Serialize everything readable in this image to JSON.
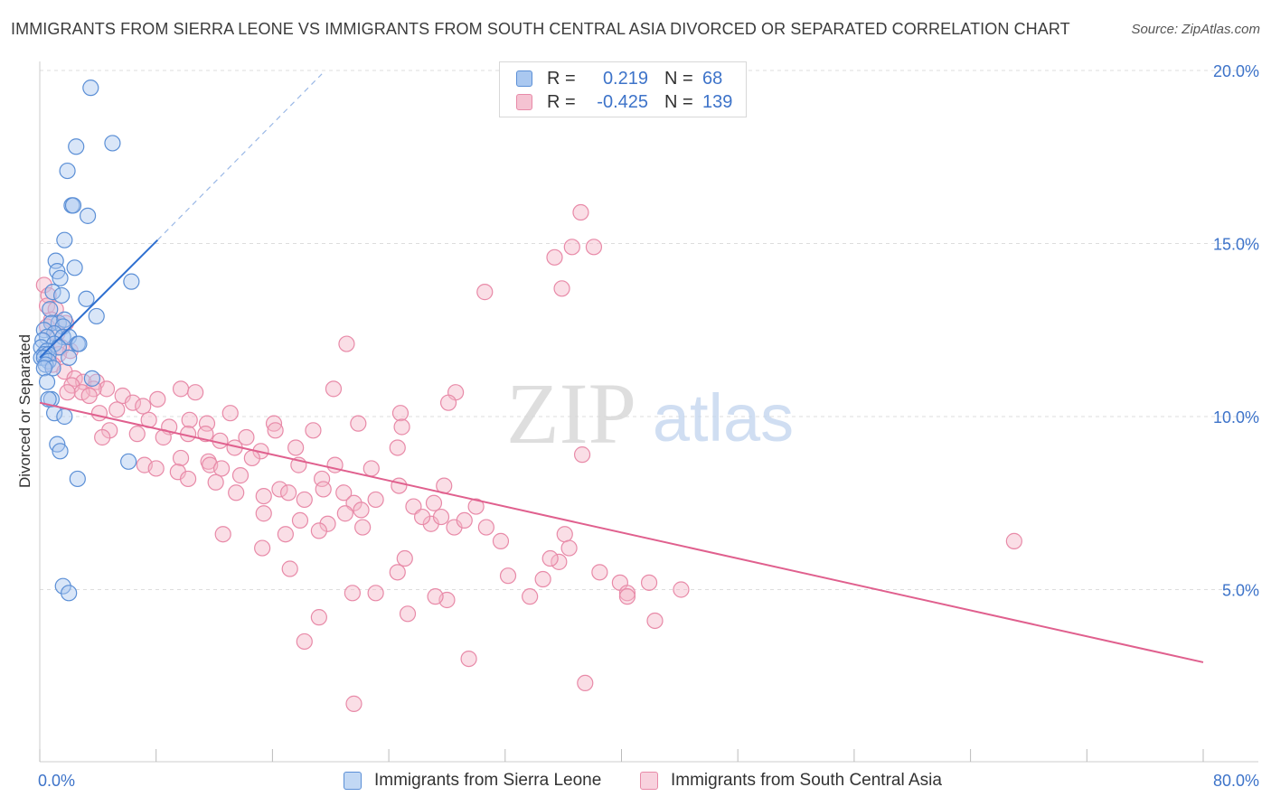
{
  "header": {
    "title": "IMMIGRANTS FROM SIERRA LEONE VS IMMIGRANTS FROM SOUTH CENTRAL ASIA DIVORCED OR SEPARATED CORRELATION CHART",
    "source": "Source: ZipAtlas.com"
  },
  "colors": {
    "blue_fill": "#aac8f0",
    "blue_stroke": "#5b8fd6",
    "blue_line": "#2e6fd0",
    "pink_fill": "#f5b6c8",
    "pink_stroke": "#e88aa8",
    "pink_line": "#e0608e",
    "axis_text": "#3d73c9",
    "grid": "#dddddd"
  },
  "legend": {
    "series1": {
      "r_label": "R =",
      "r_value": "0.219",
      "n_label": "N =",
      "n_value": "68"
    },
    "series2": {
      "r_label": "R =",
      "r_value": "-0.425",
      "n_label": "N =",
      "n_value": "139"
    }
  },
  "watermark": {
    "zip": "ZIP",
    "atlas": "atlas"
  },
  "chart_data": {
    "type": "scatter",
    "title": "IMMIGRANTS FROM SIERRA LEONE VS IMMIGRANTS FROM SOUTH CENTRAL ASIA DIVORCED OR SEPARATED CORRELATION CHART",
    "xlabel": "",
    "ylabel": "Divorced or Separated",
    "xlim": [
      0,
      80
    ],
    "ylim": [
      0,
      21
    ],
    "x_tick_labels": [
      "0.0%",
      "80.0%"
    ],
    "y_ticks": [
      5,
      10,
      15,
      20
    ],
    "y_tick_labels": [
      "5.0%",
      "10.0%",
      "15.0%",
      "20.0%"
    ],
    "grid": true,
    "series": [
      {
        "name": "Immigrants from Sierra Leone",
        "color": "#5b8fd6",
        "trend": {
          "x0": 0,
          "y0": 11.7,
          "x1": 8.1,
          "y1": 15.1,
          "dash_to_x": 19.4,
          "dash_to_y": 19.9
        },
        "points": [
          [
            3.5,
            19.5
          ],
          [
            2.5,
            17.8
          ],
          [
            5.0,
            17.9
          ],
          [
            1.9,
            17.1
          ],
          [
            2.2,
            16.1
          ],
          [
            2.3,
            16.1
          ],
          [
            3.3,
            15.8
          ],
          [
            1.7,
            15.1
          ],
          [
            1.1,
            14.5
          ],
          [
            2.4,
            14.3
          ],
          [
            1.2,
            14.2
          ],
          [
            1.4,
            14.0
          ],
          [
            6.3,
            13.9
          ],
          [
            0.9,
            13.6
          ],
          [
            1.5,
            13.5
          ],
          [
            3.2,
            13.4
          ],
          [
            0.7,
            13.1
          ],
          [
            3.9,
            12.9
          ],
          [
            1.3,
            12.7
          ],
          [
            0.8,
            12.7
          ],
          [
            1.7,
            12.8
          ],
          [
            1.6,
            12.6
          ],
          [
            0.3,
            12.5
          ],
          [
            1.0,
            12.4
          ],
          [
            1.6,
            12.3
          ],
          [
            0.5,
            12.3
          ],
          [
            2.0,
            12.3
          ],
          [
            0.2,
            12.2
          ],
          [
            1.0,
            12.1
          ],
          [
            2.6,
            12.1
          ],
          [
            2.7,
            12.1
          ],
          [
            1.3,
            12.0
          ],
          [
            0.1,
            12.0
          ],
          [
            0.5,
            11.9
          ],
          [
            0.3,
            11.8
          ],
          [
            0.6,
            11.8
          ],
          [
            0.1,
            11.7
          ],
          [
            0.3,
            11.7
          ],
          [
            0.6,
            11.6
          ],
          [
            2.0,
            11.7
          ],
          [
            0.4,
            11.5
          ],
          [
            0.9,
            11.4
          ],
          [
            0.3,
            11.4
          ],
          [
            3.6,
            11.1
          ],
          [
            0.5,
            11.0
          ],
          [
            0.8,
            10.5
          ],
          [
            0.6,
            10.5
          ],
          [
            1.0,
            10.1
          ],
          [
            1.7,
            10.0
          ],
          [
            1.2,
            9.2
          ],
          [
            1.4,
            9.0
          ],
          [
            6.1,
            8.7
          ],
          [
            2.6,
            8.2
          ],
          [
            1.6,
            5.1
          ],
          [
            2.0,
            4.9
          ]
        ]
      },
      {
        "name": "Immigrants from South Central Asia",
        "color": "#e88aa8",
        "trend": {
          "x0": 0,
          "y0": 10.4,
          "x1": 80,
          "y1": 2.9
        },
        "points": [
          [
            0.3,
            13.8
          ],
          [
            0.6,
            13.5
          ],
          [
            0.5,
            13.2
          ],
          [
            1.1,
            13.1
          ],
          [
            0.8,
            12.8
          ],
          [
            1.8,
            12.7
          ],
          [
            0.5,
            12.6
          ],
          [
            1.2,
            12.4
          ],
          [
            1.5,
            12.0
          ],
          [
            2.1,
            11.9
          ],
          [
            1.3,
            11.8
          ],
          [
            0.9,
            11.5
          ],
          [
            1.7,
            11.3
          ],
          [
            2.4,
            11.1
          ],
          [
            3.0,
            11.0
          ],
          [
            2.2,
            10.9
          ],
          [
            3.9,
            11.0
          ],
          [
            4.6,
            10.8
          ],
          [
            3.7,
            10.8
          ],
          [
            5.7,
            10.6
          ],
          [
            2.9,
            10.7
          ],
          [
            3.4,
            10.6
          ],
          [
            1.9,
            10.7
          ],
          [
            6.4,
            10.4
          ],
          [
            7.1,
            10.3
          ],
          [
            5.3,
            10.2
          ],
          [
            4.1,
            10.1
          ],
          [
            8.1,
            10.5
          ],
          [
            9.7,
            10.8
          ],
          [
            10.7,
            10.7
          ],
          [
            13.1,
            10.1
          ],
          [
            7.5,
            9.9
          ],
          [
            8.9,
            9.7
          ],
          [
            10.3,
            9.9
          ],
          [
            11.5,
            9.8
          ],
          [
            4.8,
            9.6
          ],
          [
            6.7,
            9.5
          ],
          [
            8.5,
            9.4
          ],
          [
            4.3,
            9.4
          ],
          [
            10.2,
            9.5
          ],
          [
            11.4,
            9.5
          ],
          [
            12.4,
            9.3
          ],
          [
            14.2,
            9.4
          ],
          [
            16.1,
            9.8
          ],
          [
            15.2,
            9.0
          ],
          [
            17.6,
            9.1
          ],
          [
            13.4,
            9.1
          ],
          [
            9.7,
            8.8
          ],
          [
            11.6,
            8.7
          ],
          [
            11.7,
            8.6
          ],
          [
            12.5,
            8.5
          ],
          [
            14.6,
            8.8
          ],
          [
            7.2,
            8.6
          ],
          [
            8.0,
            8.5
          ],
          [
            9.5,
            8.4
          ],
          [
            10.2,
            8.2
          ],
          [
            12.1,
            8.1
          ],
          [
            13.8,
            8.3
          ],
          [
            17.8,
            8.6
          ],
          [
            20.3,
            8.6
          ],
          [
            19.4,
            8.2
          ],
          [
            22.8,
            8.5
          ],
          [
            24.7,
            8.0
          ],
          [
            13.5,
            7.8
          ],
          [
            15.4,
            7.7
          ],
          [
            16.5,
            7.9
          ],
          [
            17.1,
            7.8
          ],
          [
            18.2,
            7.6
          ],
          [
            19.5,
            7.9
          ],
          [
            20.9,
            7.8
          ],
          [
            21.6,
            7.5
          ],
          [
            23.1,
            7.6
          ],
          [
            25.7,
            7.4
          ],
          [
            27.1,
            7.5
          ],
          [
            30.0,
            7.4
          ],
          [
            15.4,
            7.2
          ],
          [
            17.9,
            7.0
          ],
          [
            19.8,
            6.9
          ],
          [
            21.0,
            7.2
          ],
          [
            22.1,
            7.3
          ],
          [
            22.2,
            6.8
          ],
          [
            26.9,
            6.9
          ],
          [
            26.3,
            7.1
          ],
          [
            27.6,
            7.1
          ],
          [
            28.5,
            6.8
          ],
          [
            29.2,
            7.0
          ],
          [
            30.7,
            6.8
          ],
          [
            36.1,
            6.6
          ],
          [
            12.6,
            6.6
          ],
          [
            16.9,
            6.6
          ],
          [
            19.2,
            6.7
          ],
          [
            36.4,
            6.2
          ],
          [
            15.3,
            6.2
          ],
          [
            25.1,
            5.9
          ],
          [
            35.7,
            5.8
          ],
          [
            27.8,
            8.0
          ],
          [
            31.7,
            6.4
          ],
          [
            24.6,
            5.5
          ],
          [
            17.2,
            5.6
          ],
          [
            35.1,
            5.9
          ],
          [
            32.2,
            5.4
          ],
          [
            34.6,
            5.3
          ],
          [
            38.5,
            5.5
          ],
          [
            39.9,
            5.2
          ],
          [
            41.9,
            5.2
          ],
          [
            44.1,
            5.0
          ],
          [
            40.4,
            4.9
          ],
          [
            23.1,
            4.9
          ],
          [
            28.0,
            4.7
          ],
          [
            33.7,
            4.8
          ],
          [
            21.5,
            4.9
          ],
          [
            27.2,
            4.8
          ],
          [
            40.4,
            4.8
          ],
          [
            42.3,
            4.1
          ],
          [
            19.2,
            4.2
          ],
          [
            25.3,
            4.3
          ],
          [
            18.2,
            3.5
          ],
          [
            29.5,
            3.0
          ],
          [
            37.5,
            2.3
          ],
          [
            21.6,
            1.7
          ],
          [
            37.2,
            15.9
          ],
          [
            36.6,
            14.9
          ],
          [
            38.1,
            14.9
          ],
          [
            35.4,
            14.6
          ],
          [
            35.9,
            13.7
          ],
          [
            30.6,
            13.6
          ],
          [
            21.1,
            12.1
          ],
          [
            20.2,
            10.8
          ],
          [
            28.6,
            10.7
          ],
          [
            24.8,
            10.1
          ],
          [
            24.9,
            9.7
          ],
          [
            24.6,
            9.1
          ],
          [
            37.3,
            8.9
          ],
          [
            28.1,
            10.4
          ],
          [
            21.9,
            9.8
          ],
          [
            18.8,
            9.6
          ],
          [
            16.2,
            9.6
          ],
          [
            67.0,
            6.4
          ]
        ]
      }
    ]
  },
  "y_axis_label": "Divorced or Separated",
  "bottom_legend": {
    "item1": "Immigrants from Sierra Leone",
    "item2": "Immigrants from South Central Asia"
  }
}
